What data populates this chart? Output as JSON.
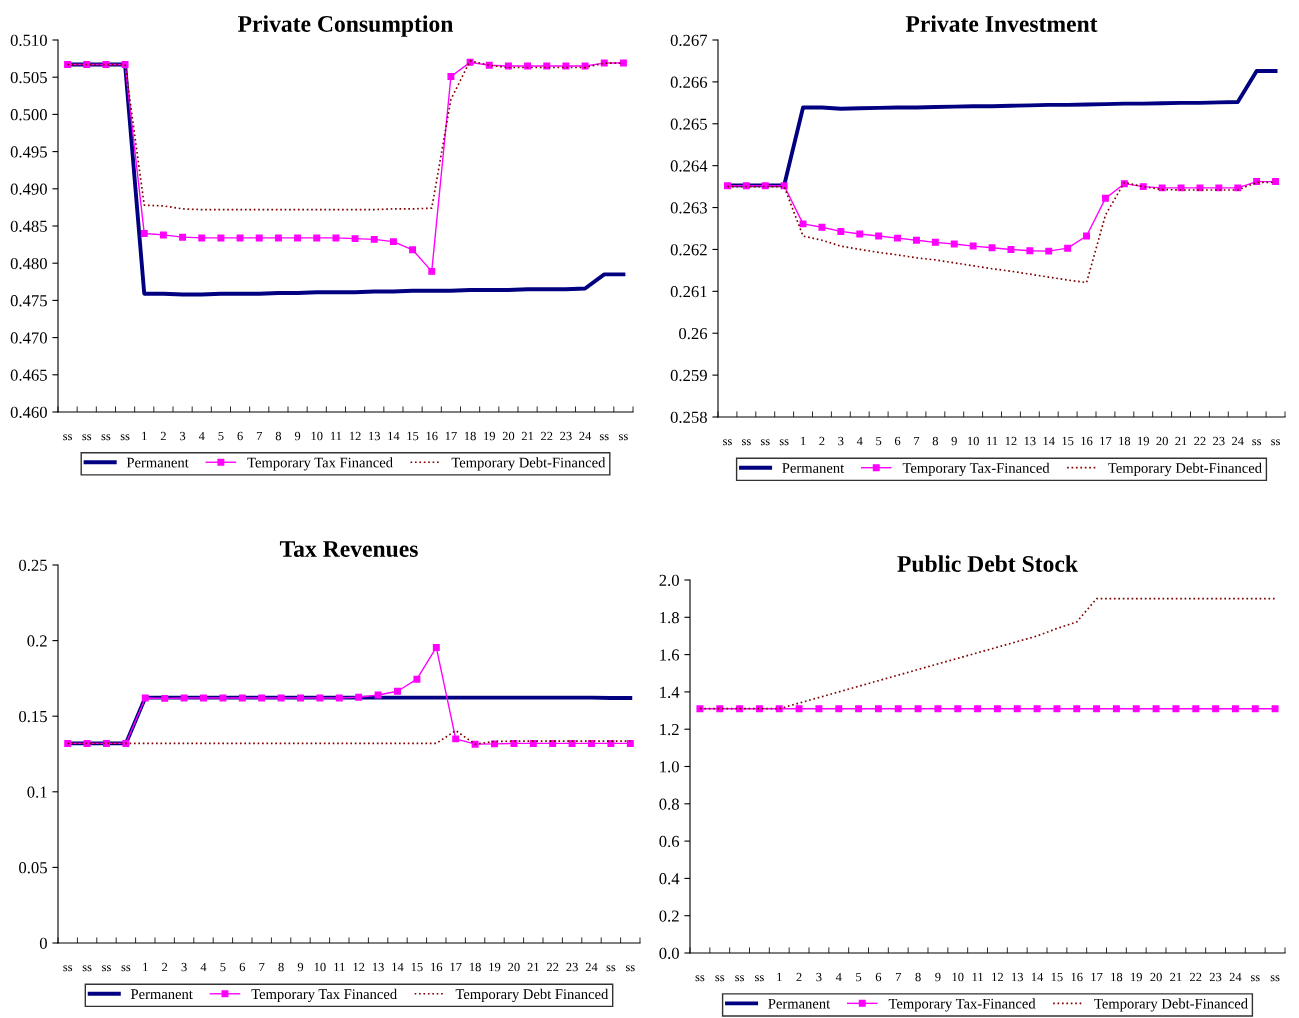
{
  "chart_data": [
    {
      "type": "line",
      "title": "Private Consumption",
      "categories": [
        "ss",
        "ss",
        "ss",
        "ss",
        "1",
        "2",
        "3",
        "4",
        "5",
        "6",
        "7",
        "8",
        "9",
        "10",
        "11",
        "12",
        "13",
        "14",
        "15",
        "16",
        "17",
        "18",
        "19",
        "20",
        "21",
        "22",
        "23",
        "24",
        "ss",
        "ss"
      ],
      "ylim": [
        0.46,
        0.51
      ],
      "yticks": [
        {
          "value": 0.46,
          "label": "0.460"
        },
        {
          "value": 0.465,
          "label": "0.465"
        },
        {
          "value": 0.47,
          "label": "0.470"
        },
        {
          "value": 0.475,
          "label": "0.475"
        },
        {
          "value": 0.48,
          "label": "0.480"
        },
        {
          "value": 0.485,
          "label": "0.485"
        },
        {
          "value": 0.49,
          "label": "0.490"
        },
        {
          "value": 0.495,
          "label": "0.495"
        },
        {
          "value": 0.5,
          "label": "0.500"
        },
        {
          "value": 0.505,
          "label": "0.505"
        },
        {
          "value": 0.51,
          "label": "0.510"
        }
      ],
      "grid": false,
      "legend": "bottom",
      "series": [
        {
          "name": "Permanent",
          "color": "#000080",
          "marker": "none",
          "line_style": "solid",
          "values": [
            0.5067,
            0.5067,
            0.5067,
            0.5067,
            0.4759,
            0.4759,
            0.4758,
            0.4758,
            0.4759,
            0.4759,
            0.4759,
            0.476,
            0.476,
            0.4761,
            0.4761,
            0.4761,
            0.4762,
            0.4762,
            0.4763,
            0.4763,
            0.4763,
            0.4764,
            0.4764,
            0.4764,
            0.4765,
            0.4765,
            0.4765,
            0.4766,
            0.4785,
            0.4785
          ]
        },
        {
          "name": "Temporary Tax Financed",
          "color": "#ff00ff",
          "marker": "square",
          "line_style": "solid",
          "values": [
            0.5067,
            0.5067,
            0.5067,
            0.5067,
            0.484,
            0.4838,
            0.4835,
            0.4834,
            0.4834,
            0.4834,
            0.4834,
            0.4834,
            0.4834,
            0.4834,
            0.4834,
            0.4833,
            0.4832,
            0.4829,
            0.4818,
            0.4789,
            0.5051,
            0.507,
            0.5066,
            0.5065,
            0.5065,
            0.5065,
            0.5065,
            0.5065,
            0.5069,
            0.5069
          ]
        },
        {
          "name": "Temporary Debt-Financed",
          "color": "#800000",
          "marker": "none",
          "line_style": "dotted",
          "values": [
            0.5067,
            0.5067,
            0.5067,
            0.5067,
            0.4878,
            0.4877,
            0.4873,
            0.4872,
            0.4872,
            0.4872,
            0.4872,
            0.4872,
            0.4872,
            0.4872,
            0.4872,
            0.4872,
            0.4872,
            0.4873,
            0.4873,
            0.4874,
            0.502,
            0.5072,
            0.5066,
            0.5063,
            0.5063,
            0.5063,
            0.5063,
            0.5063,
            0.5069,
            0.5069
          ]
        }
      ]
    },
    {
      "type": "line",
      "title": "Private Investment",
      "categories": [
        "ss",
        "ss",
        "ss",
        "ss",
        "1",
        "2",
        "3",
        "4",
        "5",
        "6",
        "7",
        "8",
        "9",
        "10",
        "11",
        "12",
        "13",
        "14",
        "15",
        "16",
        "17",
        "18",
        "19",
        "20",
        "21",
        "22",
        "23",
        "24",
        "ss",
        "ss"
      ],
      "ylim": [
        0.258,
        0.267
      ],
      "yticks": [
        0.258,
        0.259,
        0.26,
        0.261,
        0.262,
        0.263,
        0.264,
        0.265,
        0.266,
        0.267
      ],
      "grid": false,
      "legend": "bottom",
      "series": [
        {
          "name": "Permanent",
          "color": "#000080",
          "marker": "none",
          "line_style": "solid",
          "values": [
            0.26353,
            0.26353,
            0.26353,
            0.26353,
            0.26539,
            0.26539,
            0.26536,
            0.26537,
            0.26538,
            0.26539,
            0.26539,
            0.2654,
            0.26541,
            0.26542,
            0.26542,
            0.26543,
            0.26544,
            0.26545,
            0.26545,
            0.26546,
            0.26547,
            0.26548,
            0.26548,
            0.26549,
            0.2655,
            0.2655,
            0.26551,
            0.26552,
            0.26626,
            0.26626
          ]
        },
        {
          "name": "Temporary Tax-Financed",
          "color": "#ff00ff",
          "marker": "square",
          "line_style": "solid",
          "values": [
            0.26352,
            0.26352,
            0.26352,
            0.26352,
            0.26261,
            0.26253,
            0.26243,
            0.26237,
            0.26232,
            0.26227,
            0.26222,
            0.26217,
            0.26213,
            0.26208,
            0.26204,
            0.262,
            0.26197,
            0.26196,
            0.26203,
            0.26232,
            0.26322,
            0.26357,
            0.2635,
            0.26347,
            0.26347,
            0.26347,
            0.26347,
            0.26347,
            0.26362,
            0.26362
          ]
        },
        {
          "name": "Temporary Debt-Financed",
          "color": "#800000",
          "marker": "none",
          "line_style": "dotted",
          "values": [
            0.2635,
            0.2635,
            0.2635,
            0.2635,
            0.26232,
            0.26222,
            0.26208,
            0.262,
            0.26193,
            0.26187,
            0.2618,
            0.26175,
            0.26168,
            0.26161,
            0.26154,
            0.26148,
            0.26141,
            0.26134,
            0.26127,
            0.26121,
            0.26282,
            0.2636,
            0.2635,
            0.26343,
            0.26342,
            0.26342,
            0.26342,
            0.26342,
            0.2636,
            0.2636
          ]
        }
      ]
    },
    {
      "type": "line",
      "title": "Tax Revenues",
      "categories": [
        "ss",
        "ss",
        "ss",
        "ss",
        "1",
        "2",
        "3",
        "4",
        "5",
        "6",
        "7",
        "8",
        "9",
        "10",
        "11",
        "12",
        "13",
        "14",
        "15",
        "16",
        "17",
        "18",
        "19",
        "20",
        "21",
        "22",
        "23",
        "24",
        "ss",
        "ss"
      ],
      "ylim": [
        0,
        0.25
      ],
      "yticks": [
        0,
        0.05,
        0.1,
        0.15,
        0.2,
        0.25
      ],
      "grid": false,
      "legend": "bottom",
      "series": [
        {
          "name": "Permanent",
          "color": "#000080",
          "marker": "none",
          "line_style": "solid",
          "values": [
            0.132,
            0.132,
            0.132,
            0.132,
            0.1623,
            0.1623,
            0.1623,
            0.1623,
            0.1623,
            0.1623,
            0.1623,
            0.1623,
            0.1623,
            0.1623,
            0.1623,
            0.1623,
            0.1623,
            0.1623,
            0.1623,
            0.1623,
            0.1623,
            0.1623,
            0.1623,
            0.1623,
            0.1623,
            0.1623,
            0.1623,
            0.1623,
            0.162,
            0.162
          ]
        },
        {
          "name": "Temporary Tax Financed",
          "color": "#ff00ff",
          "marker": "square",
          "line_style": "solid",
          "values": [
            0.132,
            0.132,
            0.132,
            0.132,
            0.162,
            0.1618,
            0.162,
            0.162,
            0.162,
            0.162,
            0.162,
            0.162,
            0.162,
            0.162,
            0.162,
            0.1625,
            0.164,
            0.1665,
            0.1745,
            0.1955,
            0.135,
            0.1315,
            0.1317,
            0.132,
            0.132,
            0.132,
            0.132,
            0.132,
            0.132,
            0.132
          ]
        },
        {
          "name": "Temporary Debt Financed",
          "color": "#800000",
          "marker": "none",
          "line_style": "dotted",
          "values": [
            0.132,
            0.132,
            0.132,
            0.132,
            0.132,
            0.132,
            0.132,
            0.132,
            0.132,
            0.132,
            0.132,
            0.132,
            0.132,
            0.132,
            0.132,
            0.132,
            0.132,
            0.132,
            0.132,
            0.132,
            0.1405,
            0.1315,
            0.1333,
            0.1335,
            0.1335,
            0.1335,
            0.1335,
            0.1335,
            0.1335,
            0.1335
          ]
        }
      ]
    },
    {
      "type": "line",
      "title": "Public Debt Stock",
      "categories": [
        "ss",
        "ss",
        "ss",
        "ss",
        "1",
        "2",
        "3",
        "4",
        "5",
        "6",
        "7",
        "8",
        "9",
        "10",
        "11",
        "12",
        "13",
        "14",
        "15",
        "16",
        "17",
        "18",
        "19",
        "20",
        "21",
        "22",
        "23",
        "24",
        "ss",
        "ss"
      ],
      "ylim": [
        0,
        2
      ],
      "yticks": [
        {
          "value": 0,
          "label": "0.0"
        },
        0.2,
        0.4,
        0.6,
        0.8,
        {
          "value": 1,
          "label": "1.0"
        },
        1.2,
        1.4,
        1.6,
        1.8,
        {
          "value": 2,
          "label": "2.0"
        }
      ],
      "grid": false,
      "legend": "bottom",
      "series": [
        {
          "name": "Permanent",
          "color": "#000080",
          "marker": "none",
          "line_style": "solid",
          "values": [
            null,
            null,
            null,
            null,
            null,
            null,
            null,
            null,
            null,
            null,
            null,
            null,
            null,
            null,
            null,
            null,
            null,
            null,
            null,
            null,
            null,
            null,
            null,
            null,
            null,
            null,
            null,
            null,
            null,
            null
          ]
        },
        {
          "name": "Temporary Tax-Financed",
          "color": "#ff00ff",
          "marker": "square",
          "line_style": "solid",
          "values": [
            1.31,
            1.31,
            1.31,
            1.31,
            1.31,
            1.31,
            1.31,
            1.31,
            1.31,
            1.31,
            1.31,
            1.31,
            1.31,
            1.31,
            1.31,
            1.31,
            1.31,
            1.31,
            1.31,
            1.31,
            1.31,
            1.31,
            1.31,
            1.31,
            1.31,
            1.31,
            1.31,
            1.31,
            1.31,
            1.31
          ]
        },
        {
          "name": "Temporary Debt-Financed",
          "color": "#800000",
          "marker": "none",
          "line_style": "dotted",
          "values": [
            1.31,
            1.31,
            1.31,
            1.31,
            1.31,
            1.34,
            1.37,
            1.4,
            1.43,
            1.46,
            1.49,
            1.52,
            1.55,
            1.58,
            1.61,
            1.64,
            1.67,
            1.7,
            1.74,
            1.775,
            1.9,
            1.9,
            1.9,
            1.9,
            1.9,
            1.9,
            1.9,
            1.9,
            1.9,
            1.9
          ]
        }
      ]
    }
  ]
}
